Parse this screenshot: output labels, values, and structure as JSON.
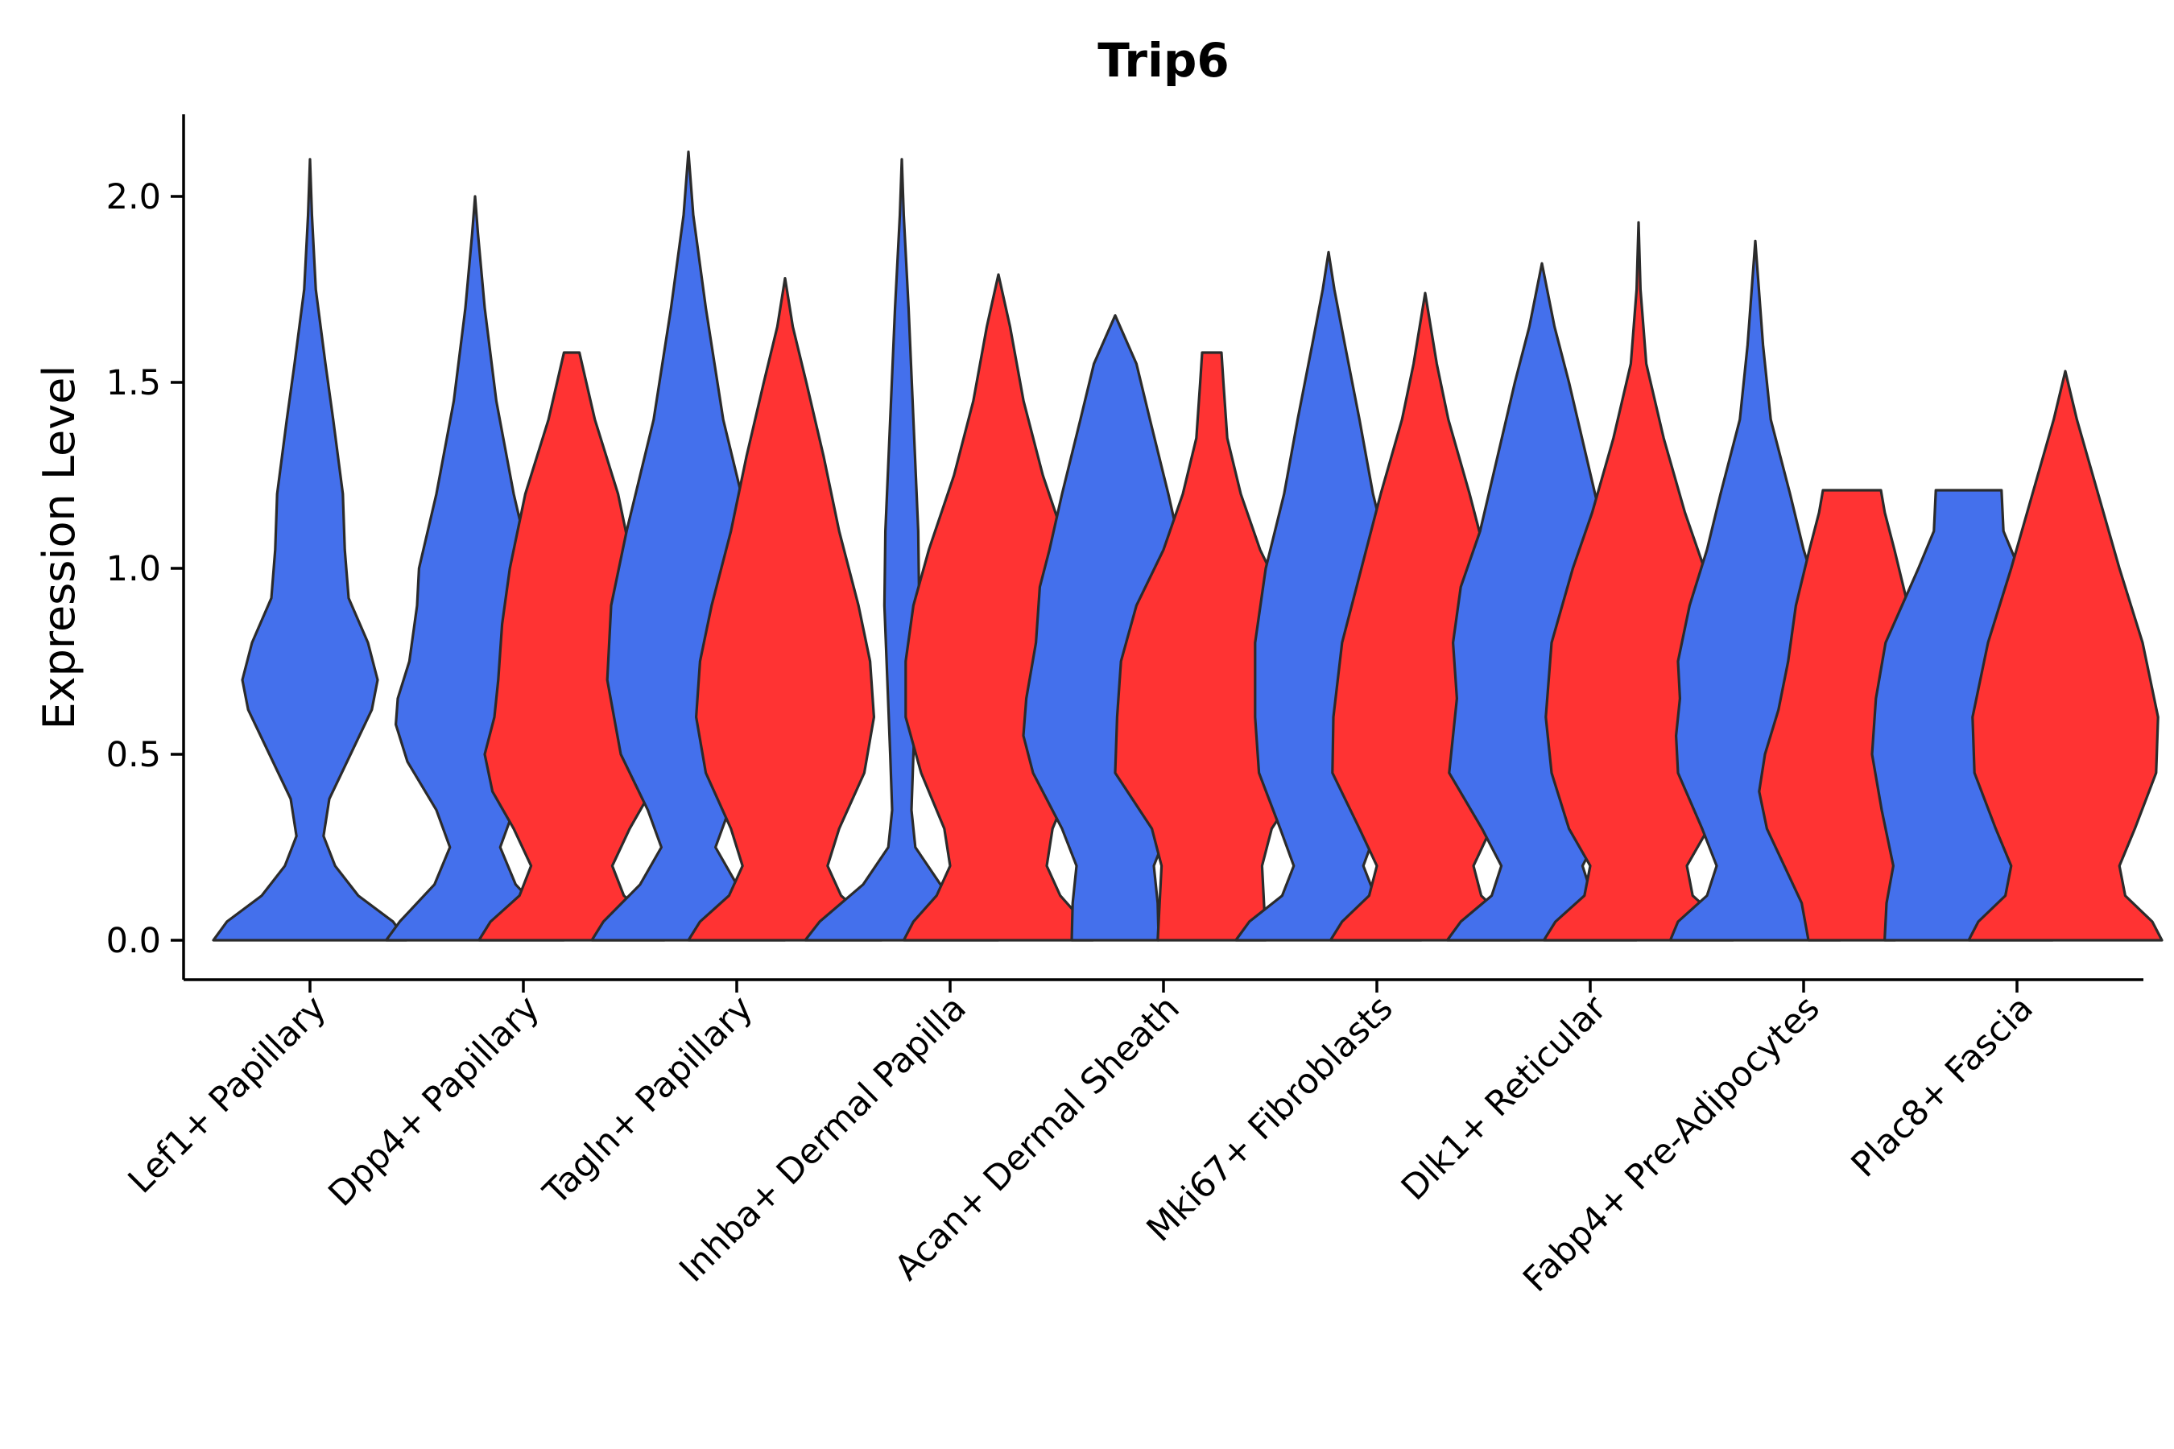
{
  "chart_data": {
    "type": "violin",
    "title": "Trip6",
    "xlabel": "",
    "ylabel": "Expression Level",
    "ylim": [
      -0.11,
      2.22
    ],
    "yticks": [
      0.0,
      0.5,
      1.0,
      1.5,
      2.0
    ],
    "ytick_labels": [
      "0.0",
      "0.5",
      "1.0",
      "1.5",
      "2.0"
    ],
    "grid": false,
    "legend": "none",
    "colors": {
      "group1": "#4470EC",
      "group2": "#FF3333",
      "outline": "#2b2b2b"
    },
    "categories": [
      "Lef1+ Papillary",
      "Dpp4+ Papillary",
      "Tagln+ Papillary",
      "Inhba+ Dermal Papilla",
      "Acan+ Dermal Sheath",
      "Mki67+ Fibroblasts",
      "Dlk1+ Reticular",
      "Fabp4+ Pre-Adipocytes",
      "Plac8+ Fascia"
    ],
    "series": [
      {
        "name": "group1",
        "violins": [
          {
            "max": 2.1,
            "profile": [
              [
                0,
                1.0
              ],
              [
                0.05,
                0.86
              ],
              [
                0.12,
                0.5
              ],
              [
                0.2,
                0.26
              ],
              [
                0.28,
                0.14
              ],
              [
                0.38,
                0.2
              ],
              [
                0.5,
                0.42
              ],
              [
                0.62,
                0.64
              ],
              [
                0.7,
                0.7
              ],
              [
                0.8,
                0.6
              ],
              [
                0.92,
                0.4
              ],
              [
                1.05,
                0.36
              ],
              [
                1.2,
                0.34
              ],
              [
                1.4,
                0.24
              ],
              [
                1.55,
                0.16
              ],
              [
                1.75,
                0.06
              ],
              [
                1.95,
                0.02
              ],
              [
                2.1,
                0.0
              ]
            ]
          },
          {
            "max": 2.0,
            "profile": [
              [
                0,
                0.92
              ],
              [
                0.05,
                0.78
              ],
              [
                0.15,
                0.42
              ],
              [
                0.25,
                0.26
              ],
              [
                0.35,
                0.4
              ],
              [
                0.48,
                0.7
              ],
              [
                0.58,
                0.82
              ],
              [
                0.65,
                0.8
              ],
              [
                0.75,
                0.68
              ],
              [
                0.9,
                0.6
              ],
              [
                1.0,
                0.58
              ],
              [
                1.2,
                0.4
              ],
              [
                1.45,
                0.22
              ],
              [
                1.7,
                0.1
              ],
              [
                1.9,
                0.03
              ],
              [
                2.0,
                0.0
              ]
            ]
          },
          {
            "max": 2.12,
            "profile": [
              [
                0,
                1.0
              ],
              [
                0.05,
                0.88
              ],
              [
                0.15,
                0.5
              ],
              [
                0.25,
                0.28
              ],
              [
                0.35,
                0.42
              ],
              [
                0.5,
                0.7
              ],
              [
                0.7,
                0.84
              ],
              [
                0.9,
                0.8
              ],
              [
                1.1,
                0.64
              ],
              [
                1.4,
                0.36
              ],
              [
                1.7,
                0.18
              ],
              [
                1.95,
                0.05
              ],
              [
                2.12,
                0.0
              ]
            ]
          },
          {
            "max": 2.1,
            "profile": [
              [
                0,
                1.0
              ],
              [
                0.05,
                0.85
              ],
              [
                0.15,
                0.4
              ],
              [
                0.25,
                0.14
              ],
              [
                0.35,
                0.1
              ],
              [
                0.5,
                0.12
              ],
              [
                0.7,
                0.15
              ],
              [
                0.9,
                0.18
              ],
              [
                1.1,
                0.17
              ],
              [
                1.4,
                0.12
              ],
              [
                1.7,
                0.07
              ],
              [
                1.95,
                0.02
              ],
              [
                2.1,
                0.0
              ]
            ]
          },
          {
            "max": 1.68,
            "profile": [
              [
                0,
                0.45
              ],
              [
                0.1,
                0.44
              ],
              [
                0.2,
                0.4
              ],
              [
                0.3,
                0.55
              ],
              [
                0.45,
                0.85
              ],
              [
                0.55,
                0.95
              ],
              [
                0.65,
                0.92
              ],
              [
                0.8,
                0.82
              ],
              [
                0.95,
                0.78
              ],
              [
                1.05,
                0.68
              ],
              [
                1.2,
                0.55
              ],
              [
                1.4,
                0.36
              ],
              [
                1.55,
                0.22
              ],
              [
                1.68,
                0.0
              ]
            ]
          },
          {
            "max": 1.85,
            "profile": [
              [
                0,
                0.96
              ],
              [
                0.05,
                0.82
              ],
              [
                0.12,
                0.48
              ],
              [
                0.2,
                0.36
              ],
              [
                0.3,
                0.5
              ],
              [
                0.45,
                0.72
              ],
              [
                0.6,
                0.76
              ],
              [
                0.8,
                0.76
              ],
              [
                1.0,
                0.65
              ],
              [
                1.2,
                0.46
              ],
              [
                1.4,
                0.32
              ],
              [
                1.6,
                0.17
              ],
              [
                1.75,
                0.06
              ],
              [
                1.85,
                0.0
              ]
            ]
          },
          {
            "max": 1.82,
            "profile": [
              [
                0,
                0.98
              ],
              [
                0.05,
                0.84
              ],
              [
                0.12,
                0.52
              ],
              [
                0.2,
                0.42
              ],
              [
                0.3,
                0.62
              ],
              [
                0.45,
                0.96
              ],
              [
                0.55,
                0.92
              ],
              [
                0.65,
                0.88
              ],
              [
                0.8,
                0.92
              ],
              [
                0.95,
                0.84
              ],
              [
                1.1,
                0.64
              ],
              [
                1.3,
                0.46
              ],
              [
                1.5,
                0.28
              ],
              [
                1.65,
                0.13
              ],
              [
                1.82,
                0.0
              ]
            ]
          },
          {
            "max": 1.88,
            "profile": [
              [
                0,
                0.88
              ],
              [
                0.05,
                0.8
              ],
              [
                0.12,
                0.5
              ],
              [
                0.2,
                0.4
              ],
              [
                0.3,
                0.55
              ],
              [
                0.45,
                0.8
              ],
              [
                0.55,
                0.82
              ],
              [
                0.65,
                0.78
              ],
              [
                0.75,
                0.8
              ],
              [
                0.9,
                0.68
              ],
              [
                1.05,
                0.5
              ],
              [
                1.2,
                0.36
              ],
              [
                1.4,
                0.16
              ],
              [
                1.6,
                0.08
              ],
              [
                1.88,
                0.0
              ]
            ]
          },
          {
            "max": 1.21,
            "profile": [
              [
                0,
                0.87
              ],
              [
                0.1,
                0.85
              ],
              [
                0.2,
                0.78
              ],
              [
                0.35,
                0.9
              ],
              [
                0.5,
                1.0
              ],
              [
                0.65,
                0.96
              ],
              [
                0.8,
                0.86
              ],
              [
                1.0,
                0.52
              ],
              [
                1.1,
                0.36
              ],
              [
                1.21,
                0.34
              ]
            ]
          }
        ]
      },
      {
        "name": "group2",
        "violins": [
          null,
          {
            "max": 1.58,
            "profile": [
              [
                0,
                0.96
              ],
              [
                0.05,
                0.84
              ],
              [
                0.12,
                0.54
              ],
              [
                0.2,
                0.42
              ],
              [
                0.3,
                0.6
              ],
              [
                0.4,
                0.82
              ],
              [
                0.5,
                0.9
              ],
              [
                0.6,
                0.8
              ],
              [
                0.7,
                0.76
              ],
              [
                0.85,
                0.72
              ],
              [
                1.0,
                0.64
              ],
              [
                1.2,
                0.48
              ],
              [
                1.4,
                0.24
              ],
              [
                1.58,
                0.08
              ]
            ]
          },
          {
            "max": 1.78,
            "profile": [
              [
                0,
                1.0
              ],
              [
                0.05,
                0.88
              ],
              [
                0.12,
                0.58
              ],
              [
                0.2,
                0.44
              ],
              [
                0.3,
                0.56
              ],
              [
                0.45,
                0.82
              ],
              [
                0.6,
                0.92
              ],
              [
                0.75,
                0.88
              ],
              [
                0.9,
                0.76
              ],
              [
                1.1,
                0.56
              ],
              [
                1.3,
                0.4
              ],
              [
                1.5,
                0.22
              ],
              [
                1.65,
                0.08
              ],
              [
                1.78,
                0.0
              ]
            ]
          },
          {
            "max": 1.79,
            "profile": [
              [
                0,
                0.98
              ],
              [
                0.05,
                0.88
              ],
              [
                0.12,
                0.64
              ],
              [
                0.2,
                0.5
              ],
              [
                0.3,
                0.56
              ],
              [
                0.45,
                0.8
              ],
              [
                0.6,
                0.96
              ],
              [
                0.75,
                0.96
              ],
              [
                0.9,
                0.88
              ],
              [
                1.05,
                0.72
              ],
              [
                1.25,
                0.46
              ],
              [
                1.45,
                0.26
              ],
              [
                1.65,
                0.12
              ],
              [
                1.79,
                0.0
              ]
            ]
          },
          {
            "max": 1.58,
            "profile": [
              [
                0,
                0.56
              ],
              [
                0.1,
                0.54
              ],
              [
                0.2,
                0.52
              ],
              [
                0.3,
                0.62
              ],
              [
                0.45,
                1.0
              ],
              [
                0.6,
                0.98
              ],
              [
                0.75,
                0.94
              ],
              [
                0.9,
                0.78
              ],
              [
                1.05,
                0.5
              ],
              [
                1.2,
                0.3
              ],
              [
                1.35,
                0.16
              ],
              [
                1.5,
                0.12
              ],
              [
                1.58,
                0.1
              ]
            ]
          },
          {
            "max": 1.74,
            "profile": [
              [
                0,
                0.98
              ],
              [
                0.05,
                0.86
              ],
              [
                0.12,
                0.58
              ],
              [
                0.2,
                0.5
              ],
              [
                0.3,
                0.68
              ],
              [
                0.45,
                0.96
              ],
              [
                0.6,
                0.95
              ],
              [
                0.8,
                0.86
              ],
              [
                1.0,
                0.66
              ],
              [
                1.2,
                0.46
              ],
              [
                1.4,
                0.24
              ],
              [
                1.55,
                0.12
              ],
              [
                1.74,
                0.0
              ]
            ]
          },
          {
            "max": 1.93,
            "profile": [
              [
                0,
                0.98
              ],
              [
                0.05,
                0.86
              ],
              [
                0.12,
                0.56
              ],
              [
                0.2,
                0.5
              ],
              [
                0.3,
                0.72
              ],
              [
                0.45,
                0.9
              ],
              [
                0.6,
                0.96
              ],
              [
                0.8,
                0.9
              ],
              [
                1.0,
                0.68
              ],
              [
                1.15,
                0.48
              ],
              [
                1.35,
                0.26
              ],
              [
                1.55,
                0.08
              ],
              [
                1.75,
                0.02
              ],
              [
                1.93,
                0.0
              ]
            ]
          },
          {
            "max": 1.21,
            "profile": [
              [
                0,
                0.45
              ],
              [
                0.1,
                0.52
              ],
              [
                0.2,
                0.7
              ],
              [
                0.3,
                0.88
              ],
              [
                0.4,
                0.96
              ],
              [
                0.5,
                0.9
              ],
              [
                0.62,
                0.76
              ],
              [
                0.75,
                0.66
              ],
              [
                0.9,
                0.58
              ],
              [
                1.05,
                0.44
              ],
              [
                1.15,
                0.34
              ],
              [
                1.21,
                0.3
              ]
            ]
          },
          {
            "max": 1.53,
            "profile": [
              [
                0,
                1.0
              ],
              [
                0.05,
                0.9
              ],
              [
                0.12,
                0.62
              ],
              [
                0.2,
                0.56
              ],
              [
                0.3,
                0.72
              ],
              [
                0.45,
                0.94
              ],
              [
                0.6,
                0.96
              ],
              [
                0.8,
                0.8
              ],
              [
                1.0,
                0.56
              ],
              [
                1.2,
                0.34
              ],
              [
                1.4,
                0.12
              ],
              [
                1.53,
                0.0
              ]
            ]
          }
        ]
      }
    ]
  }
}
